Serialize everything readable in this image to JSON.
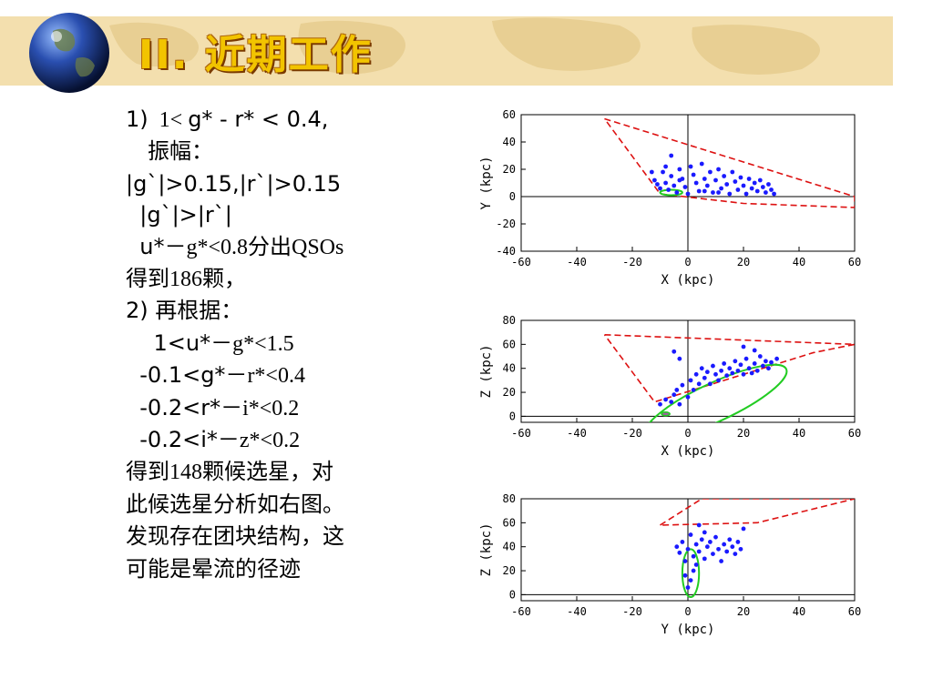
{
  "slide": {
    "title": "II. 近期工作",
    "lines": [
      [
        {
          "t": "1)",
          "f": "sans"
        },
        {
          "t": "  1",
          "f": "serif"
        },
        {
          "t": "< ",
          "f": "serif"
        },
        {
          "t": "g* - r* < 0.4,",
          "f": "sans"
        }
      ],
      [
        {
          "t": "    振幅：",
          "f": "serif"
        }
      ],
      [
        {
          "t": "|g`|>0.15,|r`|>0.15",
          "f": "sans"
        }
      ],
      [
        {
          "t": "  |g`|>|r`|",
          "f": "sans"
        }
      ],
      [
        {
          "t": "  u*－",
          "f": "sans"
        },
        {
          "t": "g*<0.8分出QSOs",
          "f": "serif"
        }
      ],
      [
        {
          "t": "得到186颗，",
          "f": "serif"
        }
      ],
      [
        {
          "t": "2) ",
          "f": "sans"
        },
        {
          "t": "再根据：",
          "f": "serif"
        }
      ],
      [
        {
          "t": "    1<u*－",
          "f": "sans"
        },
        {
          "t": "g*<1.5",
          "f": "serif"
        }
      ],
      [
        {
          "t": "  -0.1<g*－",
          "f": "sans"
        },
        {
          "t": "r*<0.4",
          "f": "serif"
        }
      ],
      [
        {
          "t": "  -0.2<r*－",
          "f": "sans"
        },
        {
          "t": "i*<0.2",
          "f": "serif"
        }
      ],
      [
        {
          "t": "  -0.2<i*－",
          "f": "sans"
        },
        {
          "t": "z*<0.2",
          "f": "serif"
        }
      ],
      [
        {
          "t": "得到148颗候选星，对",
          "f": "serif"
        }
      ],
      [
        {
          "t": "此候选星分析如右图。",
          "f": "serif"
        }
      ],
      [
        {
          "t": "发现存在团块结构，这",
          "f": "serif"
        }
      ],
      [
        {
          "t": "可能是晕流的径迹",
          "f": "serif"
        }
      ]
    ]
  },
  "colors": {
    "banner": "#f3dfae",
    "title": "#f2c400",
    "points": "#1a1aff",
    "region": "#dd1111",
    "stream": "#22cc22"
  },
  "chart_data": [
    {
      "type": "scatter",
      "xlabel": "X (kpc)",
      "ylabel": "Y (kpc)",
      "xlim": [
        -60,
        60
      ],
      "ylim": [
        -40,
        60
      ],
      "xticks": [
        -60,
        -40,
        -20,
        0,
        20,
        40,
        60
      ],
      "yticks": [
        -40,
        -20,
        0,
        20,
        40,
        60
      ],
      "region": [
        [
          -30,
          57
        ],
        [
          60,
          0
        ],
        [
          60,
          -8
        ],
        [
          20,
          -5
        ],
        [
          -10,
          2
        ],
        [
          -30,
          57
        ]
      ],
      "ellipse": {
        "cx": -6,
        "cy": 3,
        "rx": 4,
        "ry": 2
      },
      "points": [
        [
          -13,
          18
        ],
        [
          -12,
          12
        ],
        [
          -10,
          6
        ],
        [
          -9,
          18
        ],
        [
          -8,
          22
        ],
        [
          -8,
          10
        ],
        [
          -7,
          5
        ],
        [
          -6,
          30
        ],
        [
          -6,
          15
        ],
        [
          -5,
          8
        ],
        [
          -4,
          3
        ],
        [
          -3,
          20
        ],
        [
          -2,
          13
        ],
        [
          -1,
          7
        ],
        [
          0,
          2
        ],
        [
          1,
          22
        ],
        [
          2,
          16
        ],
        [
          3,
          10
        ],
        [
          4,
          4
        ],
        [
          5,
          24
        ],
        [
          6,
          13
        ],
        [
          7,
          8
        ],
        [
          8,
          18
        ],
        [
          9,
          3
        ],
        [
          10,
          12
        ],
        [
          11,
          20
        ],
        [
          12,
          6
        ],
        [
          13,
          15
        ],
        [
          14,
          9
        ],
        [
          15,
          2
        ],
        [
          16,
          18
        ],
        [
          17,
          11
        ],
        [
          18,
          5
        ],
        [
          19,
          14
        ],
        [
          20,
          8
        ],
        [
          21,
          2
        ],
        [
          22,
          13
        ],
        [
          23,
          6
        ],
        [
          24,
          10
        ],
        [
          25,
          4
        ],
        [
          26,
          12
        ],
        [
          27,
          7
        ],
        [
          28,
          3
        ],
        [
          29,
          9
        ],
        [
          30,
          5
        ],
        [
          31,
          2
        ],
        [
          -11,
          9
        ],
        [
          -3,
          12
        ],
        [
          6,
          4
        ],
        [
          11,
          3
        ]
      ]
    },
    {
      "type": "scatter",
      "xlabel": "X (kpc)",
      "ylabel": "Z (kpc)",
      "xlim": [
        -60,
        60
      ],
      "ylim": [
        -5,
        80
      ],
      "xticks": [
        -60,
        -40,
        -20,
        0,
        20,
        40,
        60
      ],
      "yticks": [
        0,
        20,
        40,
        60,
        80
      ],
      "region": [
        [
          -30,
          68
        ],
        [
          60,
          60
        ],
        [
          45,
          53
        ],
        [
          -12,
          12
        ],
        [
          -30,
          68
        ]
      ],
      "ellipse": {
        "cx": 10,
        "cy": 12,
        "rx": 28,
        "ry": 16,
        "rot": -25
      },
      "ellipse2": {
        "cx": -8,
        "cy": 2,
        "rx": 1.5,
        "ry": 1.5
      },
      "points": [
        [
          -10,
          10
        ],
        [
          -8,
          14
        ],
        [
          -6,
          12
        ],
        [
          -5,
          18
        ],
        [
          -4,
          22
        ],
        [
          -3,
          10
        ],
        [
          -2,
          26
        ],
        [
          0,
          16
        ],
        [
          1,
          30
        ],
        [
          2,
          22
        ],
        [
          3,
          35
        ],
        [
          4,
          27
        ],
        [
          5,
          40
        ],
        [
          6,
          32
        ],
        [
          7,
          37
        ],
        [
          8,
          27
        ],
        [
          9,
          42
        ],
        [
          10,
          35
        ],
        [
          11,
          30
        ],
        [
          12,
          38
        ],
        [
          13,
          44
        ],
        [
          14,
          34
        ],
        [
          15,
          40
        ],
        [
          16,
          36
        ],
        [
          17,
          46
        ],
        [
          18,
          38
        ],
        [
          19,
          43
        ],
        [
          20,
          35
        ],
        [
          21,
          48
        ],
        [
          22,
          40
        ],
        [
          23,
          36
        ],
        [
          24,
          44
        ],
        [
          25,
          38
        ],
        [
          26,
          50
        ],
        [
          27,
          42
        ],
        [
          28,
          46
        ],
        [
          29,
          40
        ],
        [
          30,
          45
        ],
        [
          32,
          48
        ],
        [
          20,
          58
        ],
        [
          24,
          55
        ],
        [
          -5,
          54
        ],
        [
          -3,
          48
        ]
      ]
    },
    {
      "type": "scatter",
      "xlabel": "Y (kpc)",
      "ylabel": "Z (kpc)",
      "xlim": [
        -60,
        60
      ],
      "ylim": [
        -5,
        80
      ],
      "xticks": [
        -60,
        -40,
        -20,
        0,
        20,
        40,
        60
      ],
      "yticks": [
        0,
        20,
        40,
        60,
        80
      ],
      "region": [
        [
          -10,
          58
        ],
        [
          5,
          80
        ],
        [
          60,
          80
        ],
        [
          25,
          60
        ],
        [
          -10,
          58
        ]
      ],
      "ellipse": {
        "cx": 1,
        "cy": 18,
        "rx": 3,
        "ry": 20
      },
      "points": [
        [
          -4,
          40
        ],
        [
          -3,
          35
        ],
        [
          -2,
          44
        ],
        [
          -1,
          28
        ],
        [
          0,
          38
        ],
        [
          1,
          50
        ],
        [
          2,
          32
        ],
        [
          3,
          42
        ],
        [
          4,
          36
        ],
        [
          5,
          46
        ],
        [
          6,
          30
        ],
        [
          7,
          40
        ],
        [
          8,
          44
        ],
        [
          9,
          34
        ],
        [
          10,
          48
        ],
        [
          11,
          38
        ],
        [
          12,
          28
        ],
        [
          13,
          42
        ],
        [
          14,
          36
        ],
        [
          15,
          46
        ],
        [
          16,
          40
        ],
        [
          17,
          34
        ],
        [
          18,
          44
        ],
        [
          19,
          38
        ],
        [
          20,
          55
        ],
        [
          1,
          12
        ],
        [
          0,
          6
        ],
        [
          2,
          20
        ],
        [
          -1,
          16
        ],
        [
          3,
          25
        ],
        [
          4,
          58
        ],
        [
          6,
          52
        ]
      ]
    }
  ]
}
